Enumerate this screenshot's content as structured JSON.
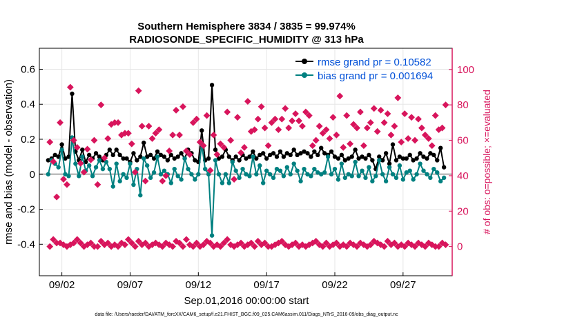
{
  "chart_data": {
    "type": "line",
    "title": "Southern Hemisphere 3834 / 3835 = 99.974%",
    "subtitle": "RADIOSONDE_SPECIFIC_HUMIDITY @ 313 hPa",
    "xlabel": "Sep.01,2016 00:00:00 start",
    "ylabel": "rmse and bias (model - observation)",
    "ylabel_right": "# of obs: o=possible; ×=evaluated",
    "footnote": "data file: /Users/raeder/DAI/ATM_forcXX/CAM6_setup/f.e21.FHIST_BGC.f09_025.CAM6assim.011/Diags_NTrS_2016-09/obs_diag_output.nc",
    "xlim": [
      0.35,
      30.6
    ],
    "ylim": [
      -0.58,
      0.72
    ],
    "ylim_right": [
      -16.5,
      112
    ],
    "x_ticks": [
      {
        "value": 2,
        "label": "09/02"
      },
      {
        "value": 7,
        "label": "09/07"
      },
      {
        "value": 12,
        "label": "09/12"
      },
      {
        "value": 17,
        "label": "09/17"
      },
      {
        "value": 22,
        "label": "09/22"
      },
      {
        "value": 27,
        "label": "09/27"
      }
    ],
    "y_ticks": [
      {
        "value": 0.6,
        "label": "0.6"
      },
      {
        "value": 0.4,
        "label": "0.4"
      },
      {
        "value": 0.2,
        "label": "0.2"
      },
      {
        "value": 0,
        "label": "0"
      },
      {
        "value": -0.2,
        "label": "-0.2"
      },
      {
        "value": -0.4,
        "label": "-0.4"
      }
    ],
    "y_right_ticks": [
      {
        "value": 100,
        "label": "100"
      },
      {
        "value": 80,
        "label": "80"
      },
      {
        "value": 60,
        "label": "60"
      },
      {
        "value": 40,
        "label": "40"
      },
      {
        "value": 20,
        "label": "20"
      },
      {
        "value": 0,
        "label": "0"
      }
    ],
    "x": [
      1.0,
      1.25,
      1.5,
      1.75,
      2.0,
      2.25,
      2.5,
      2.75,
      3.0,
      3.25,
      3.5,
      3.75,
      4.0,
      4.25,
      4.5,
      4.75,
      5.0,
      5.25,
      5.5,
      5.75,
      6.0,
      6.25,
      6.5,
      6.75,
      7.0,
      7.25,
      7.5,
      7.75,
      8.0,
      8.25,
      8.5,
      8.75,
      9.0,
      9.25,
      9.5,
      9.75,
      10.0,
      10.25,
      10.5,
      10.75,
      11.0,
      11.25,
      11.5,
      11.75,
      12.0,
      12.25,
      12.5,
      12.75,
      13.0,
      13.25,
      13.5,
      13.75,
      14.0,
      14.25,
      14.5,
      14.75,
      15.0,
      15.25,
      15.5,
      15.75,
      16.0,
      16.25,
      16.5,
      16.75,
      17.0,
      17.25,
      17.5,
      17.75,
      18.0,
      18.25,
      18.5,
      18.75,
      19.0,
      19.25,
      19.5,
      19.75,
      20.0,
      20.25,
      20.5,
      20.75,
      21.0,
      21.25,
      21.5,
      21.75,
      22.0,
      22.25,
      22.5,
      22.75,
      23.0,
      23.25,
      23.5,
      23.75,
      24.0,
      24.25,
      24.5,
      24.75,
      25.0,
      25.25,
      25.5,
      25.75,
      26.0,
      26.25,
      26.5,
      26.75,
      27.0,
      27.25,
      27.5,
      27.75,
      28.0,
      28.25,
      28.5,
      28.75,
      29.0,
      29.25,
      29.5,
      29.75,
      30.0
    ],
    "series": [
      {
        "name": "rmse grand pr = 0.10582",
        "color": "#000000",
        "values": [
          0.08,
          0.09,
          0.11,
          0.1,
          0.17,
          0.09,
          0.1,
          0.46,
          0.13,
          0.08,
          0.14,
          0.07,
          0.11,
          0.09,
          0.12,
          0.1,
          0.08,
          0.11,
          0.14,
          0.11,
          0.14,
          0.11,
          0.09,
          0.09,
          0.07,
          0.12,
          0.08,
          0.1,
          0.18,
          0.1,
          0.11,
          0.09,
          0.13,
          0.11,
          0.1,
          0.08,
          0.11,
          0.09,
          0.1,
          0.12,
          0.09,
          0.14,
          0.12,
          0.08,
          0.07,
          0.25,
          0.08,
          0.09,
          0.51,
          0.14,
          0.09,
          0.1,
          0.14,
          0.1,
          0.08,
          0.1,
          0.08,
          0.11,
          0.09,
          0.1,
          0.13,
          0.09,
          0.11,
          0.12,
          0.09,
          0.11,
          0.12,
          0.1,
          0.13,
          0.1,
          0.12,
          0.11,
          0.14,
          0.11,
          0.12,
          0.13,
          0.12,
          0.1,
          0.13,
          0.11,
          0.15,
          0.12,
          0.11,
          0.13,
          0.1,
          0.09,
          0.11,
          0.08,
          0.09,
          0.1,
          0.14,
          0.09,
          0.1,
          0.09,
          0.11,
          0.08,
          0.03,
          0.1,
          0.08,
          0.12,
          0.06,
          0.17,
          0.08,
          0.1,
          0.09,
          0.09,
          0.11,
          0.08,
          0.09,
          0.12,
          0.1,
          0.09,
          0.12,
          0.11,
          0.08,
          0.15,
          0.04
        ]
      },
      {
        "name": "bias grand pr = 0.001694",
        "color": "#008080",
        "values": [
          0.0,
          0.08,
          0.06,
          0.04,
          0.14,
          0.0,
          -0.01,
          0.21,
          0.06,
          -0.01,
          0.1,
          0.02,
          0.05,
          -0.01,
          0.04,
          0.08,
          0.03,
          0.07,
          0.03,
          -0.07,
          0.06,
          -0.04,
          0.0,
          -0.02,
          0.06,
          -0.06,
          0.03,
          -0.12,
          0.09,
          0.05,
          -0.02,
          0.01,
          0.1,
          0.0,
          0.02,
          0.0,
          -0.05,
          0.03,
          -0.01,
          -0.03,
          0.09,
          0.03,
          0.0,
          -0.03,
          0.0,
          0.17,
          0.03,
          0.0,
          -0.35,
          0.08,
          0.0,
          -0.05,
          0.0,
          -0.05,
          0.07,
          0.02,
          -0.02,
          0.03,
          0.0,
          -0.01,
          0.1,
          0.0,
          0.05,
          -0.05,
          0.02,
          0.0,
          -0.02,
          0.03,
          0.02,
          -0.01,
          0.04,
          0.0,
          0.06,
          0.02,
          -0.04,
          0.03,
          0.0,
          -0.01,
          0.03,
          0.01,
          0.0,
          0.01,
          0.1,
          0.0,
          0.03,
          -0.03,
          0.06,
          -0.02,
          0.0,
          -0.01,
          0.07,
          -0.01,
          0.02,
          -0.02,
          0.04,
          -0.04,
          -0.01,
          0.08,
          0.0,
          -0.04,
          0.04,
          0.0,
          -0.02,
          0.05,
          -0.03,
          0.01,
          0.02,
          -0.03,
          0.0,
          0.06,
          0.02,
          0.0,
          -0.02,
          0.03,
          0.01,
          -0.04,
          -0.02
        ]
      }
    ],
    "obs_evaluated": [
      59,
      48,
      28,
      70,
      38,
      35,
      90,
      60,
      56,
      47,
      42,
      55,
      49,
      60,
      35,
      80,
      50,
      61,
      69,
      70,
      70,
      63,
      64,
      64,
      58,
      42,
      88,
      68,
      37,
      68,
      61,
      64,
      66,
      37,
      40,
      54,
      63,
      77,
      63,
      79,
      54,
      52,
      70,
      72,
      59,
      57,
      74,
      43,
      63,
      52,
      58,
      56,
      76,
      60,
      38,
      73,
      53,
      56,
      82,
      65,
      66,
      72,
      79,
      67,
      57,
      70,
      72,
      66,
      72,
      78,
      67,
      71,
      75,
      71,
      68,
      76,
      74,
      57,
      60,
      68,
      64,
      66,
      61,
      73,
      63,
      85,
      56,
      74,
      58,
      69,
      67,
      76,
      57,
      67,
      70,
      78,
      65,
      77,
      70,
      75,
      63,
      68,
      84,
      59,
      75,
      61,
      73,
      60,
      72,
      67,
      63,
      61,
      57,
      74,
      66,
      67,
      80
    ],
    "obs_possible": [
      0,
      4,
      2,
      2,
      1,
      0,
      1,
      2,
      4,
      2,
      0,
      1,
      2,
      0,
      0,
      3,
      1,
      2,
      0,
      1,
      0,
      2,
      1,
      4,
      2,
      0,
      3,
      1,
      2,
      0,
      1,
      2,
      1,
      0,
      2,
      1,
      0,
      3,
      2,
      0,
      4,
      1,
      0,
      2,
      0,
      1,
      3,
      2,
      0,
      1,
      0,
      2,
      4,
      1,
      0,
      1,
      2,
      0,
      1,
      2,
      0,
      3,
      1,
      2,
      0,
      0,
      1,
      2,
      3,
      1,
      0,
      1,
      2,
      0,
      1,
      0,
      1,
      2,
      3,
      1,
      0,
      2,
      0,
      1,
      2,
      0,
      1,
      0,
      2,
      1,
      0,
      2,
      1,
      0,
      1,
      3,
      2,
      1,
      0,
      3,
      1,
      2,
      0,
      1,
      0,
      2,
      1,
      0,
      2,
      1,
      0,
      2,
      1,
      0,
      0,
      2,
      1
    ],
    "obs_x_offset": 0.12
  }
}
